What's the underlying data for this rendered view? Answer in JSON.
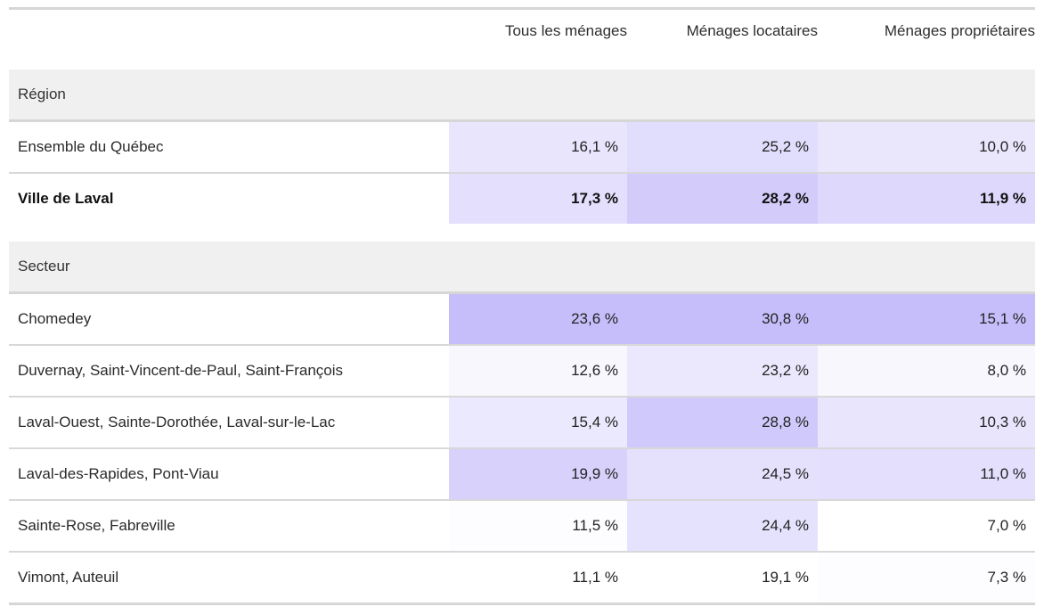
{
  "columns": [
    "Tous les ménages",
    "Ménages locataires",
    "Ménages propriétaires"
  ],
  "groups": [
    {
      "label": "Région",
      "rows": [
        {
          "label": "Ensemble du Québec",
          "values": [
            "16,1 %",
            "25,2 %",
            "10,0 %"
          ],
          "bold": false
        },
        {
          "label": "Ville de Laval",
          "values": [
            "17,3 %",
            "28,2 %",
            "11,9 %"
          ],
          "bold": true
        }
      ]
    },
    {
      "label": "Secteur",
      "rows": [
        {
          "label": "Chomedey",
          "values": [
            "23,6 %",
            "30,8 %",
            "15,1 %"
          ],
          "bold": false
        },
        {
          "label": "Duvernay, Saint-Vincent-de-Paul, Saint-François",
          "values": [
            "12,6 %",
            "23,2 %",
            "8,0 %"
          ],
          "bold": false
        },
        {
          "label": "Laval-Ouest, Sainte-Dorothée, Laval-sur-le-Lac",
          "values": [
            "15,4 %",
            "28,8 %",
            "10,3 %"
          ],
          "bold": false
        },
        {
          "label": "Laval-des-Rapides, Pont-Viau",
          "values": [
            "19,9 %",
            "24,5 %",
            "11,0 %"
          ],
          "bold": false
        },
        {
          "label": "Sainte-Rose, Fabreville",
          "values": [
            "11,5 %",
            "24,4 %",
            "7,0 %"
          ],
          "bold": false
        },
        {
          "label": "Vimont, Auteuil",
          "values": [
            "11,1 %",
            "19,1 %",
            "7,3 %"
          ],
          "bold": false
        }
      ]
    }
  ],
  "colors": {
    "heat_low": "#ffffff",
    "heat_high": "#c6befa"
  },
  "chart_data": {
    "type": "heatmap",
    "columns": [
      "Tous les ménages",
      "Ménages locataires",
      "Ménages propriétaires"
    ],
    "rows": [
      "Ensemble du Québec",
      "Ville de Laval",
      "Chomedey",
      "Duvernay, Saint-Vincent-de-Paul, Saint-François",
      "Laval-Ouest, Sainte-Dorothée, Laval-sur-le-Lac",
      "Laval-des-Rapides, Pont-Viau",
      "Sainte-Rose, Fabreville",
      "Vimont, Auteuil"
    ],
    "values": [
      [
        16.1,
        25.2,
        10.0
      ],
      [
        17.3,
        28.2,
        11.9
      ],
      [
        23.6,
        30.8,
        15.1
      ],
      [
        12.6,
        23.2,
        8.0
      ],
      [
        15.4,
        28.8,
        10.3
      ],
      [
        19.9,
        24.5,
        11.0
      ],
      [
        11.5,
        24.4,
        7.0
      ],
      [
        11.1,
        19.1,
        7.3
      ]
    ]
  }
}
